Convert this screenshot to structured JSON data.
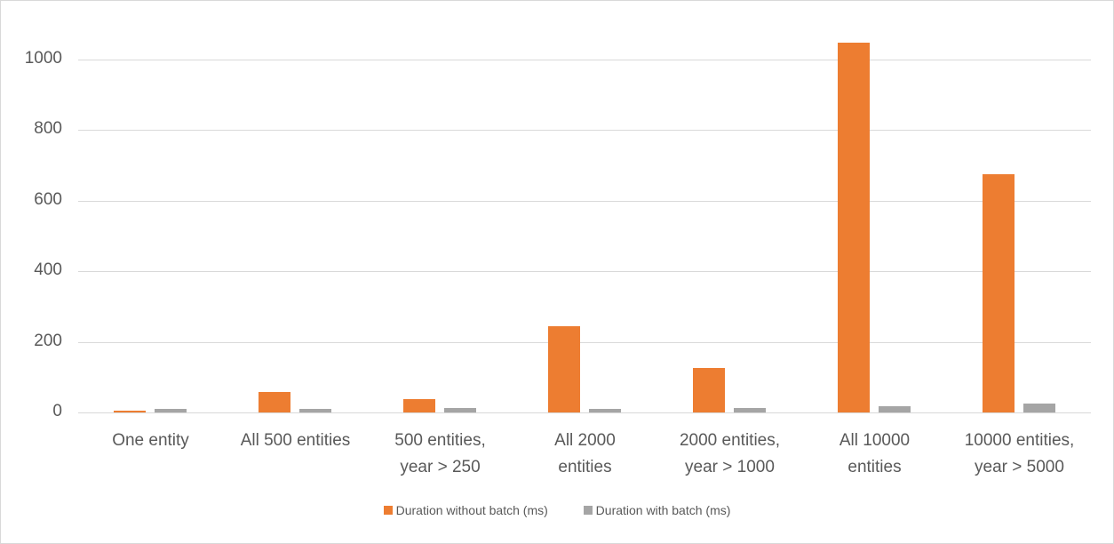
{
  "chart_data": {
    "type": "bar",
    "title": "",
    "xlabel": "",
    "ylabel": "",
    "ylim": [
      0,
      1100
    ],
    "yticks": [
      0,
      200,
      400,
      600,
      800,
      1000
    ],
    "grid": true,
    "legend_position": "bottom",
    "categories": [
      "One entity",
      "All 500 entities",
      "500 entities, year > 250",
      "All 2000 entities",
      "2000 entities, year > 1000",
      "All 10000 entities",
      "10000 entities, year > 5000"
    ],
    "category_lines": [
      [
        "One entity"
      ],
      [
        "All 500 entities"
      ],
      [
        "500 entities,",
        "year > 250"
      ],
      [
        "All 2000",
        "entities"
      ],
      [
        "2000 entities,",
        "year > 1000"
      ],
      [
        "All 10000",
        "entities"
      ],
      [
        "10000 entities,",
        "year > 5000"
      ]
    ],
    "series": [
      {
        "name": "Duration without batch (ms)",
        "color": "#ed7d31",
        "values": [
          5,
          58,
          38,
          245,
          126,
          1048,
          675
        ]
      },
      {
        "name": "Duration with batch (ms)",
        "color": "#a5a5a5",
        "values": [
          10,
          10,
          12,
          10,
          12,
          18,
          25
        ]
      }
    ]
  },
  "legend": {
    "items": [
      {
        "label": "Duration without batch (ms)",
        "color": "#ed7d31"
      },
      {
        "label": "Duration with batch (ms)",
        "color": "#a5a5a5"
      }
    ]
  }
}
